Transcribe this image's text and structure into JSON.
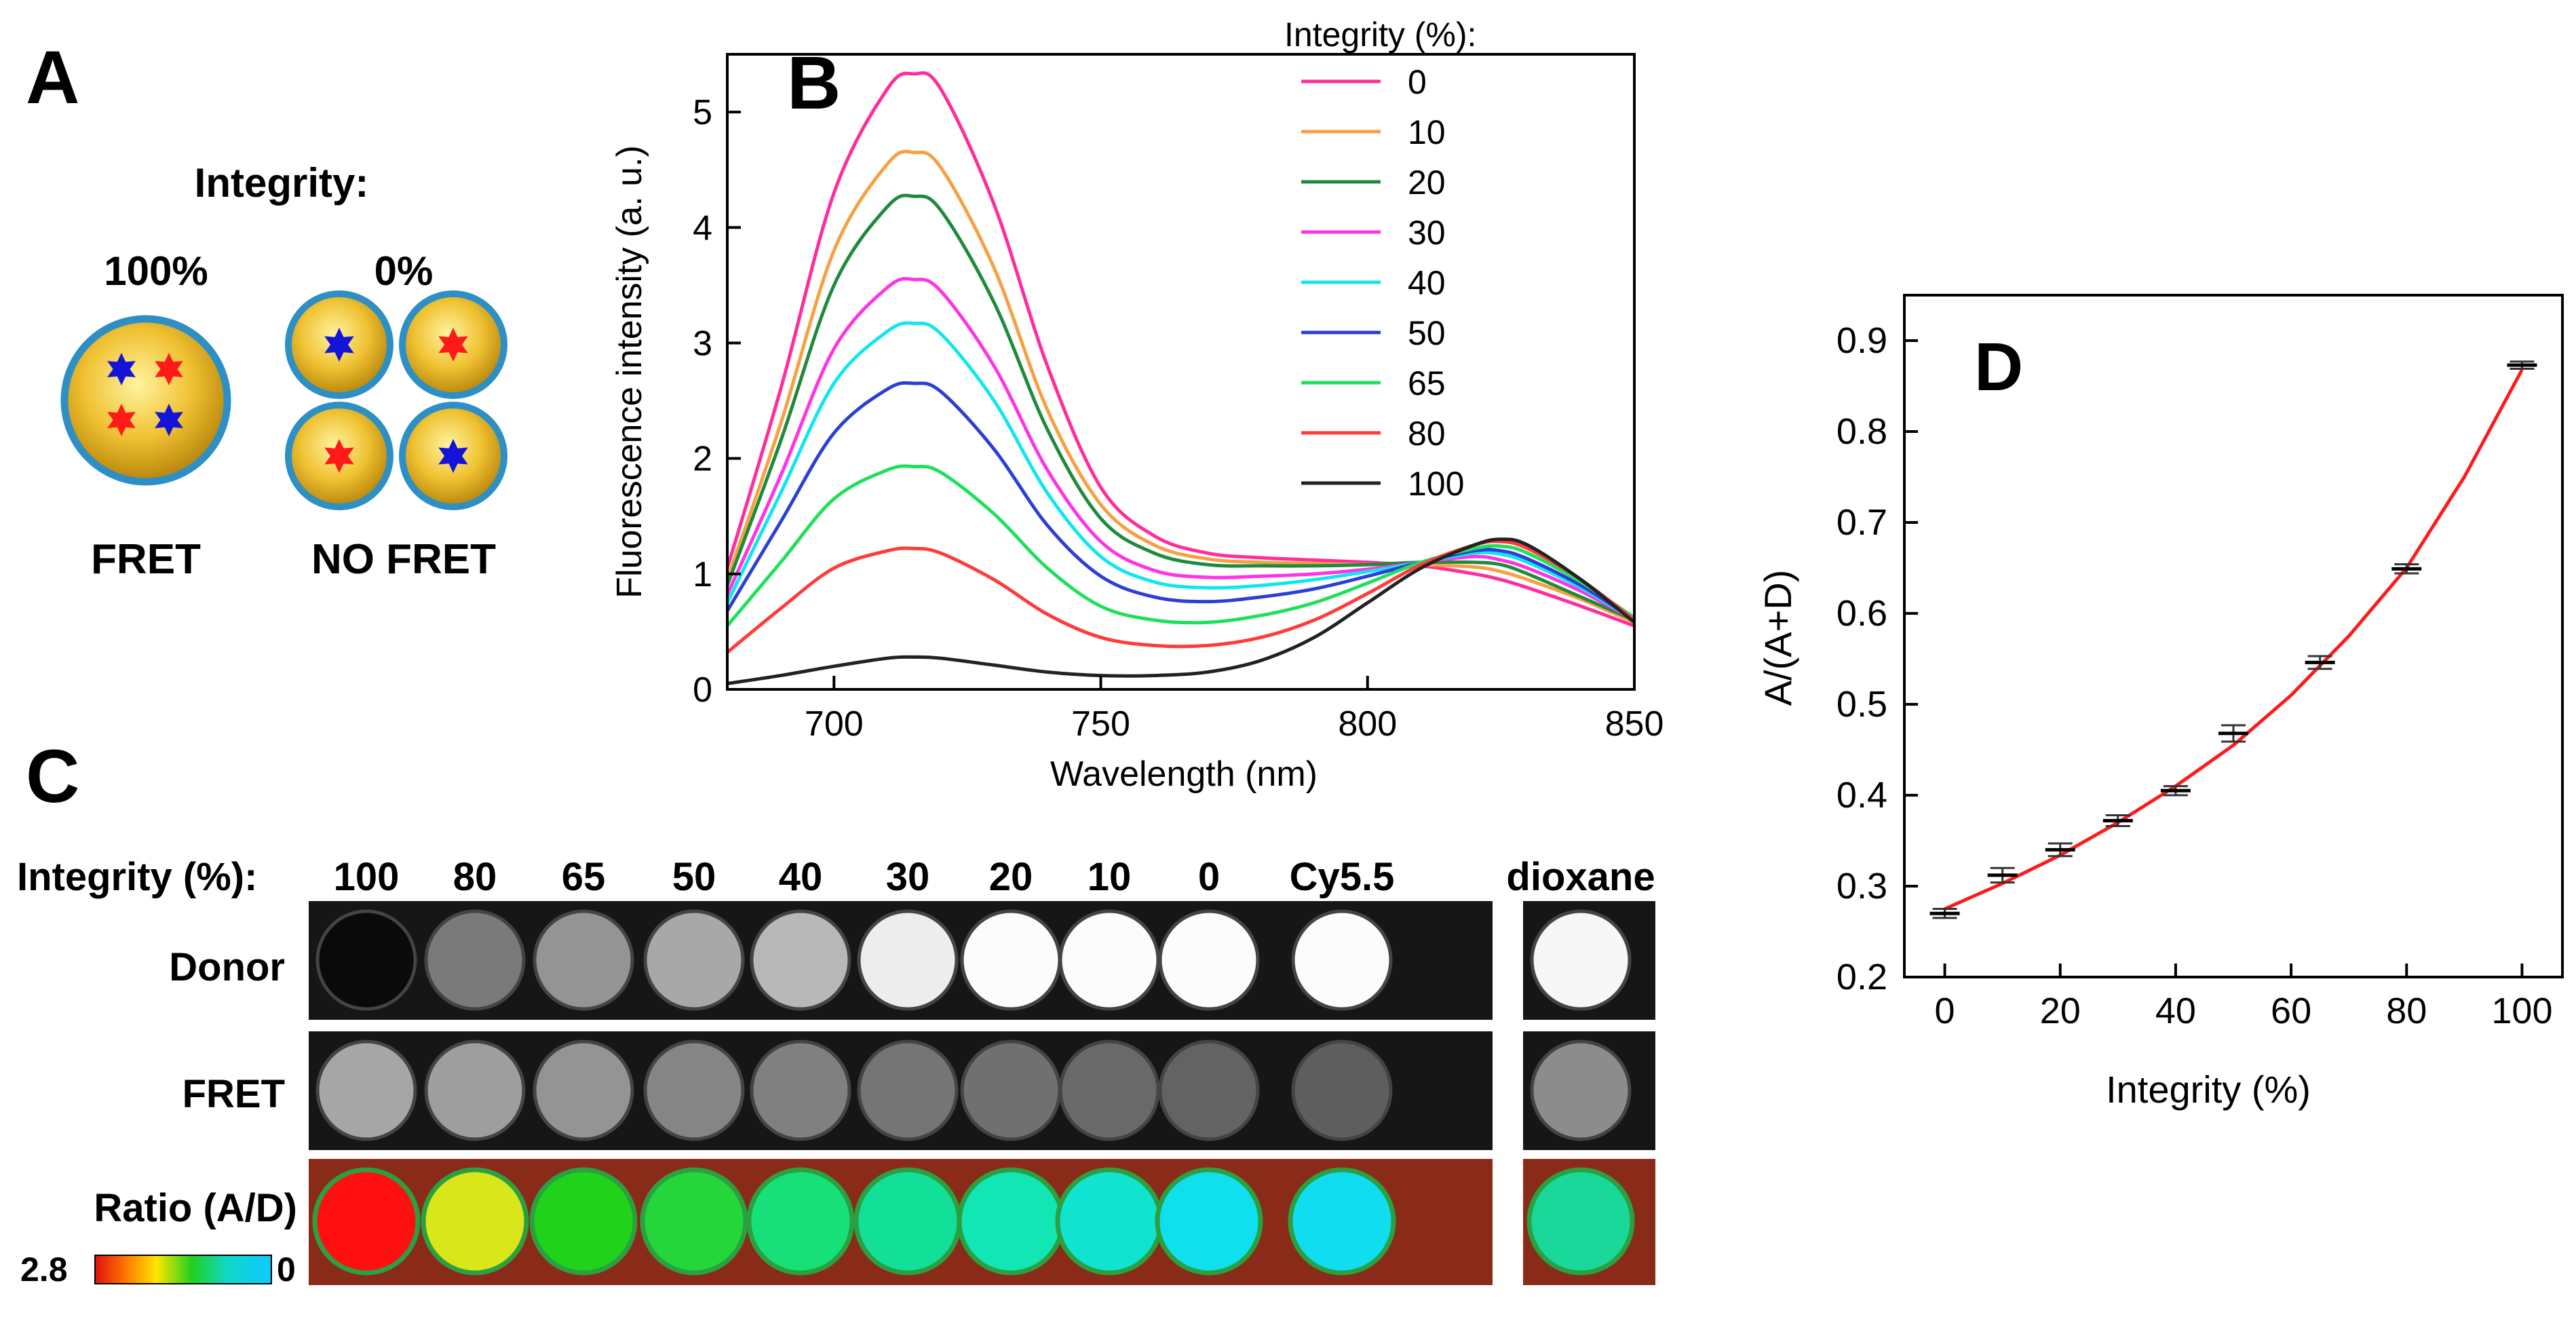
{
  "panel_labels": {
    "a": "A",
    "b": "B",
    "c": "C",
    "d": "D"
  },
  "panel_a": {
    "heading": "Integrity:",
    "left_pct": "100%",
    "right_pct": "0%",
    "left_caption": "FRET",
    "right_caption": "NO FRET",
    "colors": {
      "particle_fill": "#e3b21a",
      "particle_rim": "#2e8fc4",
      "donor": "#1414d8",
      "acceptor": "#ff1a1a"
    }
  },
  "panel_c": {
    "integrity_label": "Integrity (%):",
    "columns": [
      "100",
      "80",
      "65",
      "50",
      "40",
      "30",
      "20",
      "10",
      "0",
      "Cy5.5",
      "dioxane"
    ],
    "row_labels": [
      "Donor",
      "FRET",
      "Ratio (A/D)"
    ],
    "colorbar_min": "2.8",
    "colorbar_max": "0",
    "donor_brightness": [
      0.04,
      0.48,
      0.58,
      0.66,
      0.72,
      0.93,
      0.99,
      0.99,
      0.99,
      0.99,
      0.97
    ],
    "fret_brightness": [
      0.65,
      0.62,
      0.58,
      0.52,
      0.5,
      0.46,
      0.44,
      0.41,
      0.39,
      0.37,
      0.55
    ],
    "ratio_colors": [
      "#ff1010",
      "#d8e61a",
      "#20d21a",
      "#24d63a",
      "#18e078",
      "#12e098",
      "#12e6b4",
      "#10e4d0",
      "#10e0ee",
      "#10ddf0",
      "#1ad89a"
    ]
  },
  "chart_data": [
    {
      "type": "line",
      "panel": "B",
      "xlabel": "Wavelength (nm)",
      "ylabel": "Fluorescence intensity (a. u.)",
      "xlim": [
        680,
        850
      ],
      "ylim": [
        0,
        5.5
      ],
      "xticks": [
        700,
        750,
        800,
        850
      ],
      "yticks": [
        0,
        1,
        2,
        3,
        4,
        5
      ],
      "legend_title": "Integrity (%):",
      "legend_position": "top-right",
      "x": [
        680,
        690,
        700,
        710,
        715,
        720,
        730,
        740,
        750,
        760,
        770,
        780,
        790,
        800,
        810,
        820,
        825,
        830,
        840,
        850
      ],
      "series": [
        {
          "name": "0",
          "color": "#ff2d9b",
          "values": [
            1.05,
            2.6,
            4.3,
            5.2,
            5.33,
            5.2,
            4.2,
            2.8,
            1.75,
            1.33,
            1.18,
            1.14,
            1.12,
            1.1,
            1.07,
            1.0,
            0.95,
            0.88,
            0.72,
            0.55
          ]
        },
        {
          "name": "10",
          "color": "#f7a042",
          "values": [
            0.95,
            2.3,
            3.8,
            4.55,
            4.65,
            4.52,
            3.65,
            2.42,
            1.6,
            1.25,
            1.13,
            1.1,
            1.09,
            1.08,
            1.08,
            1.06,
            1.02,
            0.95,
            0.78,
            0.58
          ]
        },
        {
          "name": "20",
          "color": "#1f8a3c",
          "values": [
            0.9,
            2.15,
            3.5,
            4.18,
            4.27,
            4.15,
            3.35,
            2.25,
            1.48,
            1.18,
            1.08,
            1.07,
            1.07,
            1.08,
            1.1,
            1.1,
            1.08,
            1.0,
            0.8,
            0.6
          ]
        },
        {
          "name": "30",
          "color": "#ff33e6",
          "values": [
            0.82,
            1.85,
            2.95,
            3.48,
            3.55,
            3.45,
            2.8,
            1.9,
            1.28,
            1.03,
            0.97,
            0.98,
            1.0,
            1.04,
            1.1,
            1.15,
            1.12,
            1.05,
            0.85,
            0.6
          ]
        },
        {
          "name": "40",
          "color": "#10e6f0",
          "values": [
            0.75,
            1.7,
            2.65,
            3.1,
            3.17,
            3.08,
            2.5,
            1.7,
            1.15,
            0.93,
            0.88,
            0.9,
            0.95,
            1.02,
            1.1,
            1.18,
            1.17,
            1.1,
            0.88,
            0.6
          ]
        },
        {
          "name": "50",
          "color": "#2b3fd6",
          "values": [
            0.68,
            1.45,
            2.22,
            2.6,
            2.65,
            2.58,
            2.08,
            1.42,
            0.98,
            0.8,
            0.76,
            0.8,
            0.87,
            0.98,
            1.1,
            1.2,
            1.2,
            1.13,
            0.9,
            0.6
          ]
        },
        {
          "name": "65",
          "color": "#1fe05a",
          "values": [
            0.55,
            1.1,
            1.65,
            1.9,
            1.93,
            1.88,
            1.52,
            1.05,
            0.72,
            0.6,
            0.58,
            0.64,
            0.75,
            0.92,
            1.1,
            1.22,
            1.24,
            1.18,
            0.93,
            0.62
          ]
        },
        {
          "name": "80",
          "color": "#ff3b3b",
          "values": [
            0.32,
            0.7,
            1.05,
            1.2,
            1.22,
            1.18,
            0.95,
            0.65,
            0.45,
            0.38,
            0.38,
            0.45,
            0.6,
            0.83,
            1.08,
            1.25,
            1.28,
            1.22,
            0.95,
            0.6
          ]
        },
        {
          "name": "100",
          "color": "#222222",
          "values": [
            0.05,
            0.12,
            0.2,
            0.27,
            0.28,
            0.27,
            0.21,
            0.15,
            0.12,
            0.12,
            0.15,
            0.25,
            0.45,
            0.75,
            1.05,
            1.25,
            1.3,
            1.25,
            0.95,
            0.58
          ]
        }
      ]
    },
    {
      "type": "scatter",
      "panel": "D",
      "xlabel": "Integrity (%)",
      "ylabel": "A/(A+D)",
      "xlim": [
        -7,
        107
      ],
      "ylim": [
        0.2,
        0.95
      ],
      "xticks": [
        0,
        20,
        40,
        60,
        80,
        100
      ],
      "yticks": [
        0.2,
        0.3,
        0.4,
        0.5,
        0.6,
        0.7,
        0.8,
        0.9
      ],
      "x": [
        0,
        10,
        20,
        30,
        40,
        50,
        65,
        80,
        100
      ],
      "y": [
        0.27,
        0.312,
        0.34,
        0.372,
        0.405,
        0.468,
        0.546,
        0.649,
        0.873
      ],
      "y_err": [
        0.005,
        0.008,
        0.007,
        0.006,
        0.005,
        0.009,
        0.007,
        0.005,
        0.004
      ],
      "fit": {
        "color": "#ff1a1a",
        "points": [
          [
            0,
            0.275
          ],
          [
            10,
            0.303
          ],
          [
            20,
            0.334
          ],
          [
            30,
            0.37
          ],
          [
            40,
            0.41
          ],
          [
            50,
            0.455
          ],
          [
            60,
            0.51
          ],
          [
            70,
            0.575
          ],
          [
            80,
            0.65
          ],
          [
            90,
            0.75
          ],
          [
            100,
            0.868
          ]
        ]
      }
    }
  ]
}
